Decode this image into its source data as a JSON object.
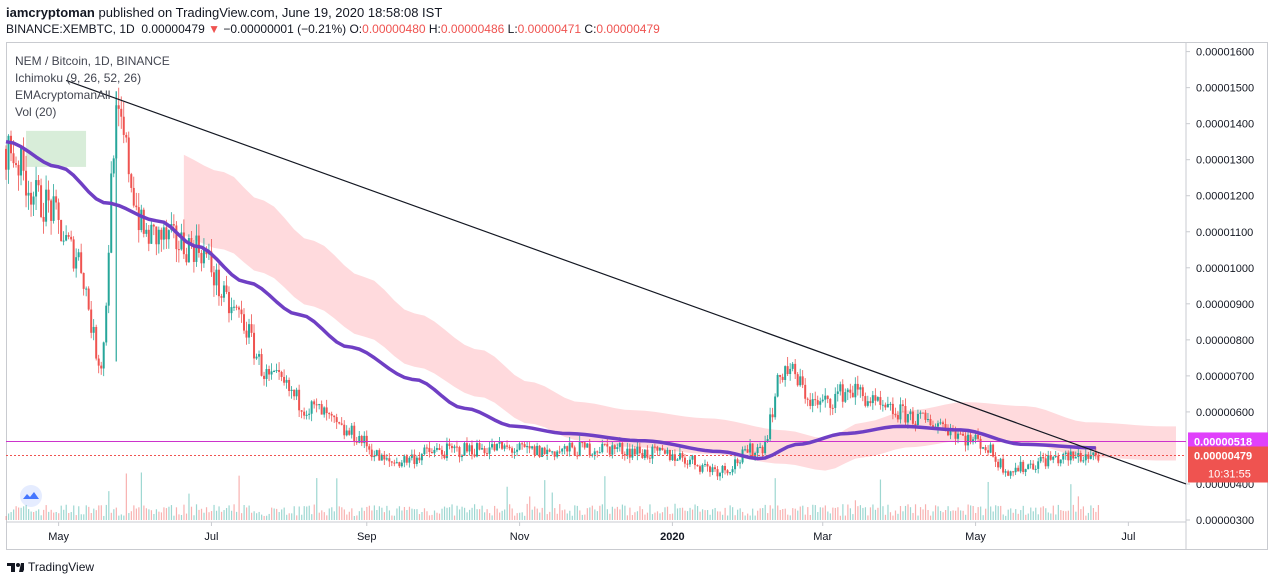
{
  "header": {
    "publisher": "iamcryptoman",
    "published_text": "published on TradingView.com, June 19, 2020 18:58:08 IST",
    "symbol_line": "BINANCE:XEMBTC, 1D",
    "last_price": "0.00000479",
    "change": "−0.00000001 (−0.21%)",
    "o_label": "O:",
    "o_value": "0.00000480",
    "h_label": "H:",
    "h_value": "0.00000486",
    "l_label": "L:",
    "l_value": "0.00000471",
    "c_label": "C:",
    "c_value": "0.00000479"
  },
  "legend": {
    "pair": "NEM / Bitcoin, 1D, BINANCE",
    "ichimoku": "Ichimoku (9, 26, 52, 26)",
    "ema": "EMAcryptomanAll",
    "vol": "Vol (20)"
  },
  "footer": {
    "brand": "TradingView"
  },
  "colors": {
    "up": "#26a69a",
    "down": "#ef5350",
    "ema": "#6f3fc4",
    "hline": "#cc33cc",
    "cloud_bear": "#ffcdd2",
    "cloud_bull": "#c8e6c9",
    "trendline": "#131722"
  },
  "chart_data": {
    "type": "candlestick",
    "symbol": "NEM / Bitcoin",
    "interval": "1D",
    "ylim": [
      3e-06,
      1.61e-05
    ],
    "y_ticks": [
      "0.00001600",
      "0.00001500",
      "0.00001400",
      "0.00001300",
      "0.00001200",
      "0.00001100",
      "0.00001000",
      "0.00000900",
      "0.00000800",
      "0.00000700",
      "0.00000600",
      "0.00000400",
      "0.00000300"
    ],
    "y_tick_values": [
      1.6e-05,
      1.5e-05,
      1.4e-05,
      1.3e-05,
      1.2e-05,
      1.1e-05,
      1e-05,
      9e-06,
      8e-06,
      7e-06,
      6e-06,
      4e-06,
      3e-06
    ],
    "x_ticks": [
      "May",
      "Jul",
      "Sep",
      "Nov",
      "2020",
      "Mar",
      "May",
      "Jul"
    ],
    "x_tick_dates": [
      "2019-05-01",
      "2019-07-01",
      "2019-09-01",
      "2019-11-01",
      "2020-01-01",
      "2020-03-01",
      "2020-05-01",
      "2020-07-01"
    ],
    "x_range": [
      "2019-04-10",
      "2020-07-24"
    ],
    "price_label": {
      "value": 4.79e-06,
      "text": "0.00000479",
      "countdown": "10:31:55"
    },
    "hline": {
      "value": 5.18e-06,
      "text": "0.00000518"
    },
    "trendline": [
      {
        "date": "2019-05-04",
        "value": 1.52e-05
      },
      {
        "date": "2020-07-24",
        "value": 4e-06
      }
    ],
    "ema_path": [
      [
        "2019-04-10",
        1.35e-05
      ],
      [
        "2019-05-01",
        1.28e-05
      ],
      [
        "2019-05-20",
        1.18e-05
      ],
      [
        "2019-06-10",
        1.13e-05
      ],
      [
        "2019-06-25",
        1.06e-05
      ],
      [
        "2019-07-15",
        9.6e-06
      ],
      [
        "2019-08-05",
        8.7e-06
      ],
      [
        "2019-08-25",
        7.8e-06
      ],
      [
        "2019-09-20",
        6.9e-06
      ],
      [
        "2019-10-10",
        6.1e-06
      ],
      [
        "2019-10-30",
        5.6e-06
      ],
      [
        "2019-11-20",
        5.4e-06
      ],
      [
        "2019-12-20",
        5.2e-06
      ],
      [
        "2020-01-20",
        4.9e-06
      ],
      [
        "2020-02-05",
        4.7e-06
      ],
      [
        "2020-02-20",
        5.1e-06
      ],
      [
        "2020-03-10",
        5.4e-06
      ],
      [
        "2020-04-01",
        5.6e-06
      ],
      [
        "2020-04-25",
        5.5e-06
      ],
      [
        "2020-05-20",
        5.1e-06
      ],
      [
        "2020-06-19",
        5e-06
      ]
    ],
    "candle_anchors": [
      [
        "2019-04-10",
        1.33e-05
      ],
      [
        "2019-04-25",
        1.18e-05
      ],
      [
        "2019-05-08",
        1.04e-05
      ],
      [
        "2019-05-18",
        7.4e-06
      ],
      [
        "2019-05-24",
        1.4e-05
      ],
      [
        "2019-06-05",
        1.09e-05
      ],
      [
        "2019-06-25",
        1.06e-05
      ],
      [
        "2019-07-10",
        8.8e-06
      ],
      [
        "2019-07-25",
        6.9e-06
      ],
      [
        "2019-08-10",
        6.1e-06
      ],
      [
        "2019-08-25",
        5.4e-06
      ],
      [
        "2019-09-10",
        4.6e-06
      ],
      [
        "2019-09-30",
        4.9e-06
      ],
      [
        "2019-10-20",
        5e-06
      ],
      [
        "2019-11-10",
        4.9e-06
      ],
      [
        "2019-12-05",
        5e-06
      ],
      [
        "2019-12-31",
        4.8e-06
      ],
      [
        "2020-01-20",
        4.4e-06
      ],
      [
        "2020-02-05",
        5e-06
      ],
      [
        "2020-02-15",
        7.2e-06
      ],
      [
        "2020-02-28",
        6.2e-06
      ],
      [
        "2020-03-12",
        6.6e-06
      ],
      [
        "2020-03-28",
        6e-06
      ],
      [
        "2020-04-15",
        5.7e-06
      ],
      [
        "2020-05-01",
        5.2e-06
      ],
      [
        "2020-05-15",
        4.4e-06
      ],
      [
        "2020-06-01",
        4.7e-06
      ],
      [
        "2020-06-19",
        4.8e-06
      ]
    ]
  }
}
